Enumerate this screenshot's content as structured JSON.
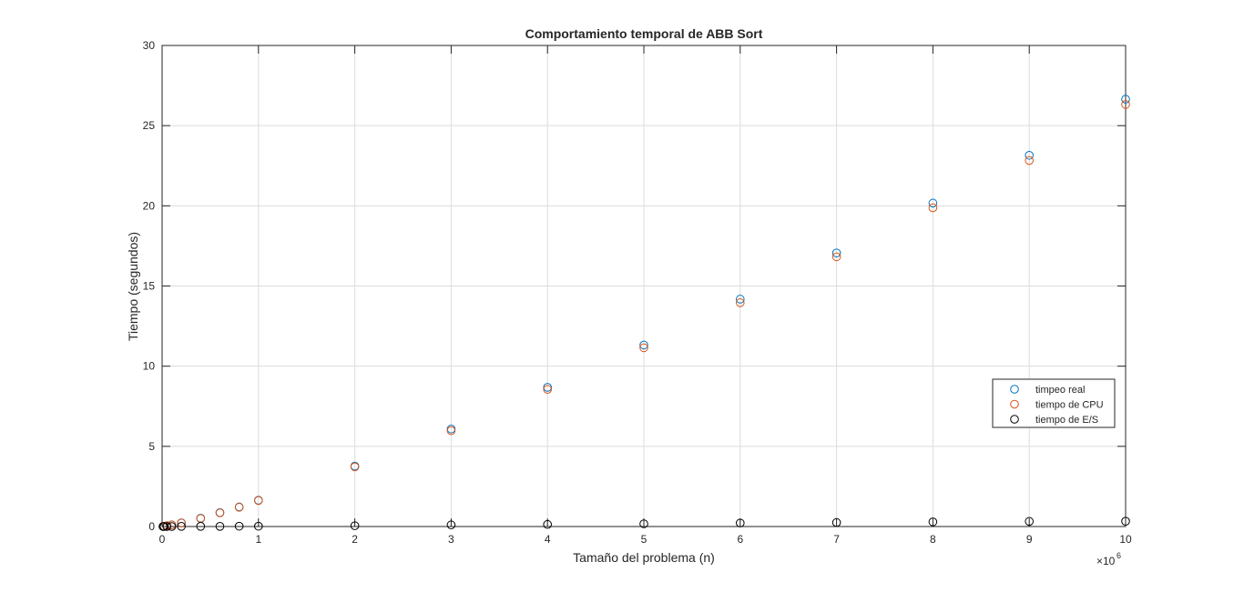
{
  "chart_data": {
    "type": "scatter",
    "title": "Comportamiento temporal de ABB Sort",
    "xlabel": "Tamaño del problema (n)",
    "ylabel": "Tiempo (segundos)",
    "x_exponent_label": "×10",
    "x_exponent_power": "6",
    "xlim": [
      0,
      10
    ],
    "ylim": [
      0,
      30
    ],
    "x_ticks": [
      "0",
      "1",
      "2",
      "3",
      "4",
      "5",
      "6",
      "7",
      "8",
      "9",
      "10"
    ],
    "y_ticks": [
      "0",
      "5",
      "10",
      "15",
      "20",
      "25",
      "30"
    ],
    "grid": true,
    "legend_position": "right",
    "x_units": "×10^6",
    "series": [
      {
        "name": "timpeo real",
        "color": "#0072BD",
        "x": [
          0.01,
          0.02,
          0.05,
          0.1,
          0.2,
          0.4,
          0.6,
          0.8,
          1,
          2,
          3,
          4,
          5,
          6,
          7,
          8,
          9,
          10
        ],
        "y": [
          0.01,
          0.02,
          0.05,
          0.1,
          0.23,
          0.52,
          0.87,
          1.22,
          1.64,
          3.77,
          6.08,
          8.68,
          11.32,
          14.18,
          17.06,
          20.17,
          23.15,
          26.65
        ]
      },
      {
        "name": "tiempo de CPU",
        "color": "#D95319",
        "x": [
          0.01,
          0.02,
          0.05,
          0.1,
          0.2,
          0.4,
          0.6,
          0.8,
          1,
          2,
          3,
          4,
          5,
          6,
          7,
          8,
          9,
          10
        ],
        "y": [
          0.01,
          0.02,
          0.05,
          0.1,
          0.22,
          0.5,
          0.85,
          1.2,
          1.62,
          3.72,
          5.98,
          8.55,
          11.15,
          13.96,
          16.82,
          19.88,
          22.83,
          26.32
        ]
      },
      {
        "name": "tiempo de E/S",
        "color": "#000000",
        "x": [
          0.01,
          0.02,
          0.05,
          0.1,
          0.2,
          0.4,
          0.6,
          0.8,
          1,
          2,
          3,
          4,
          5,
          6,
          7,
          8,
          9,
          10
        ],
        "y": [
          0.0,
          0.0,
          0.0,
          0.0,
          0.01,
          0.01,
          0.01,
          0.02,
          0.02,
          0.05,
          0.1,
          0.13,
          0.17,
          0.22,
          0.25,
          0.29,
          0.32,
          0.33
        ]
      }
    ]
  }
}
